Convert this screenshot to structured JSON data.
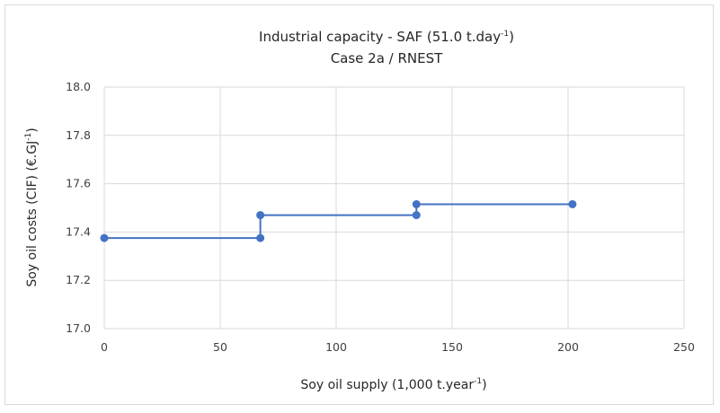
{
  "chart_data": {
    "type": "line",
    "title_main": "Industrial capacity - SAF (51.0 t.day",
    "title_sup": "-1",
    "title_end": ")",
    "subtitle": "Case 2a / RNEST",
    "xlabel_main": "Soy oil supply (1,000 t.year",
    "xlabel_sup": "-1",
    "xlabel_end": ")",
    "ylabel_main": "Soy oil costs (CIF) (€.GJ",
    "ylabel_sup": "-1",
    "ylabel_end": ")",
    "xlim": [
      0,
      250
    ],
    "ylim": [
      17.0,
      18.0
    ],
    "x_ticks": [
      "0",
      "50",
      "100",
      "150",
      "200",
      "250"
    ],
    "y_ticks": [
      "17.0",
      "17.2",
      "17.4",
      "17.6",
      "17.8",
      "18.0"
    ],
    "grid": true,
    "series": [
      {
        "color": "#4472C4",
        "points": [
          {
            "x": 0,
            "y": 17.375
          },
          {
            "x": 67.3,
            "y": 17.375
          },
          {
            "x": 67.3,
            "y": 17.47
          },
          {
            "x": 134.6,
            "y": 17.47
          },
          {
            "x": 134.6,
            "y": 17.515
          },
          {
            "x": 201.9,
            "y": 17.515
          }
        ]
      }
    ]
  }
}
